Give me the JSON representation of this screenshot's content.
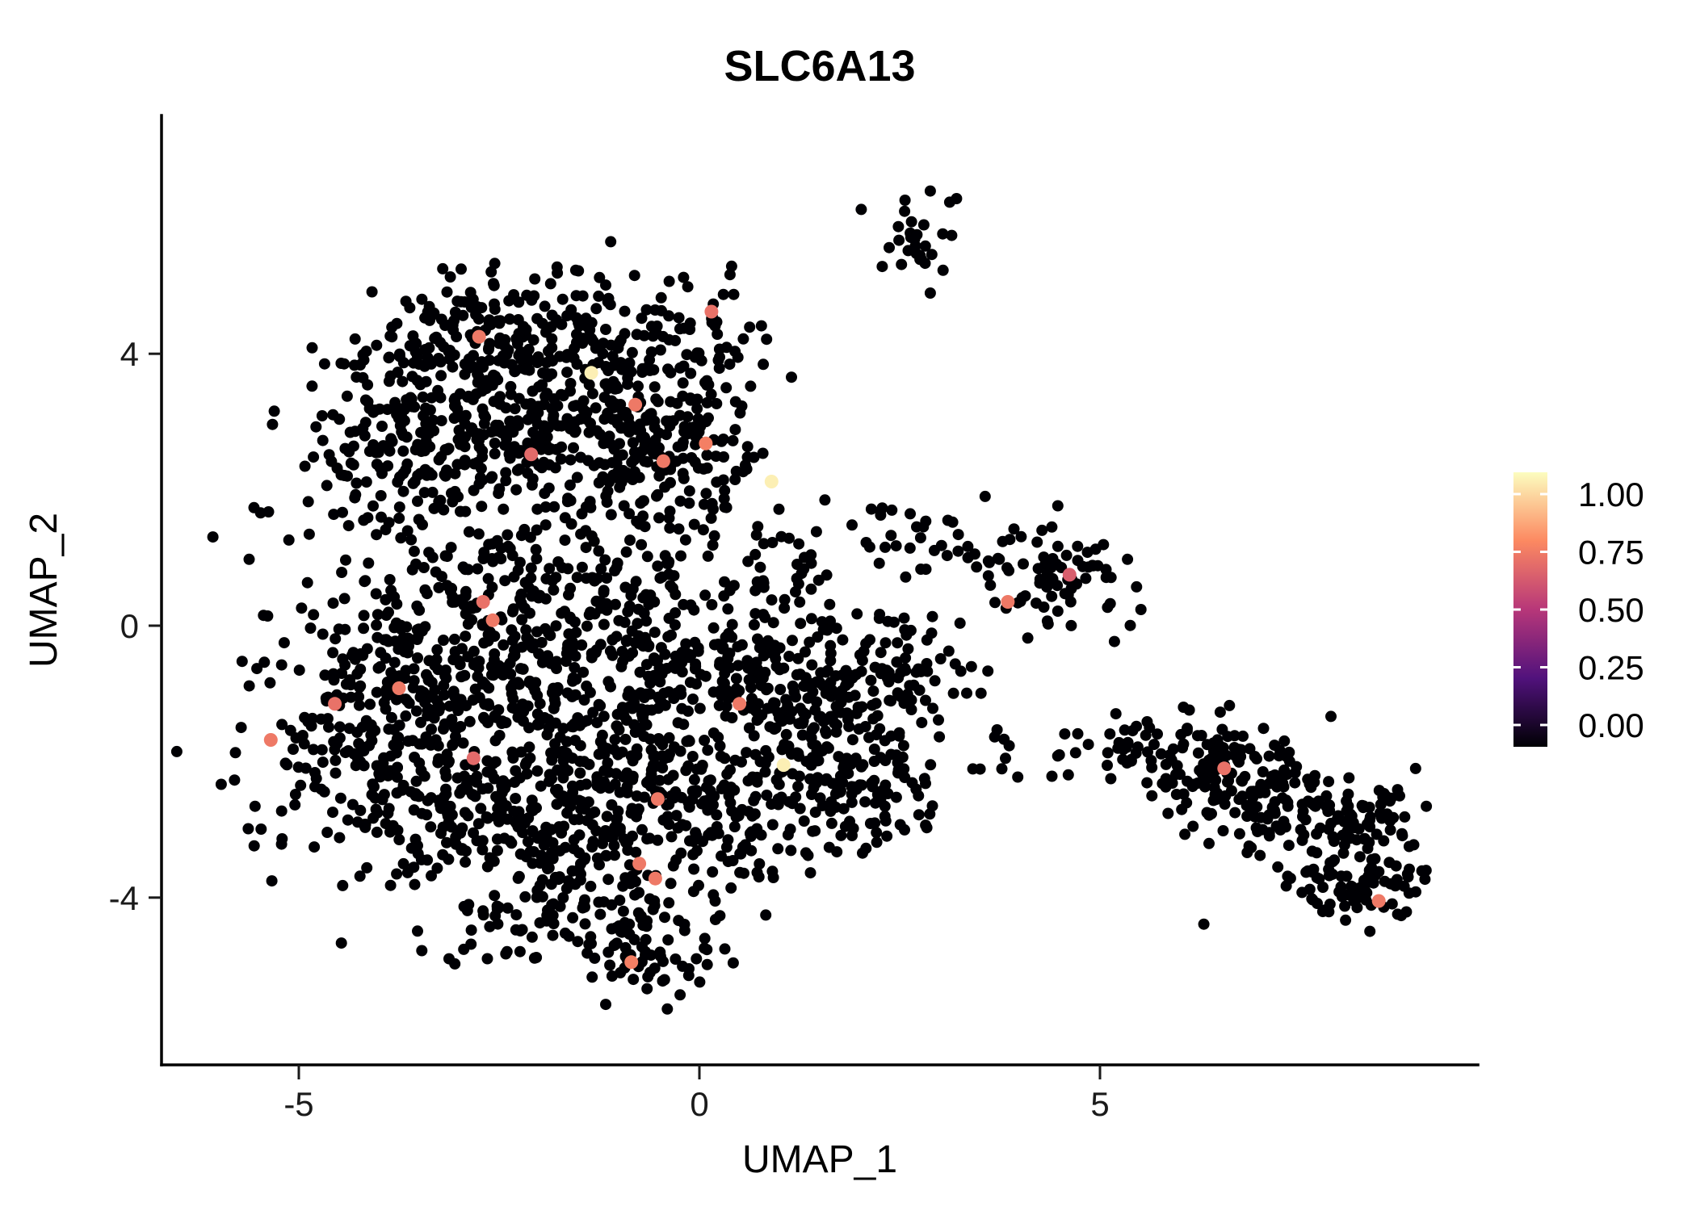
{
  "chart_data": {
    "type": "scatter",
    "title": "SLC6A13",
    "xlabel": "UMAP_1",
    "ylabel": "UMAP_2",
    "xlim": [
      -6.7,
      9.7
    ],
    "ylim": [
      -6.5,
      7.5
    ],
    "grid": false,
    "legend_position": "right",
    "x_ticks": [
      -5,
      0,
      5
    ],
    "x_tick_labels": [
      "-5",
      "0",
      "5"
    ],
    "y_ticks": [
      4,
      0,
      -4
    ],
    "y_tick_labels": [
      "4",
      "0",
      "-4"
    ],
    "point_base_value": 0,
    "colormap": {
      "name": "magma",
      "stops": [
        [
          0,
          "#000004"
        ],
        [
          0.25,
          "#51127C"
        ],
        [
          0.5,
          "#B73779"
        ],
        [
          0.75,
          "#FC8961"
        ],
        [
          1,
          "#FCFDBF"
        ]
      ]
    },
    "legend": {
      "labels": [
        "1.00",
        "0.75",
        "0.50",
        "0.25",
        "0.00"
      ],
      "values": [
        1,
        0.75,
        0.5,
        0.25,
        0
      ]
    },
    "clusters": [
      {
        "cx": -2.3,
        "cy": 4.35,
        "sx": 1.05,
        "sy": 0.45,
        "n": 210
      },
      {
        "cx": -3.6,
        "cy": 3.0,
        "sx": 0.8,
        "sy": 0.55,
        "n": 150
      },
      {
        "cx": -1.6,
        "cy": 3.3,
        "sx": 0.9,
        "sy": 0.55,
        "n": 180
      },
      {
        "cx": -2.6,
        "cy": 2.4,
        "sx": 1.0,
        "sy": 0.45,
        "n": 120
      },
      {
        "cx": -0.3,
        "cy": 2.5,
        "sx": 0.55,
        "sy": 0.75,
        "n": 150
      },
      {
        "cx": 0.15,
        "cy": 4.2,
        "sx": 0.35,
        "sy": 0.6,
        "n": 35
      },
      {
        "cx": -3.2,
        "cy": 1.4,
        "sx": 1.2,
        "sy": 0.45,
        "n": 60
      },
      {
        "cx": -4.0,
        "cy": -1.6,
        "sx": 0.85,
        "sy": 0.9,
        "n": 220
      },
      {
        "cx": -2.6,
        "cy": -2.8,
        "sx": 0.95,
        "sy": 0.85,
        "n": 240
      },
      {
        "cx": -3.1,
        "cy": -0.4,
        "sx": 0.85,
        "sy": 0.65,
        "n": 170
      },
      {
        "cx": -1.6,
        "cy": -1.3,
        "sx": 0.8,
        "sy": 0.8,
        "n": 170
      },
      {
        "cx": -1.3,
        "cy": -4.0,
        "sx": 0.75,
        "sy": 0.55,
        "n": 130
      },
      {
        "cx": -0.7,
        "cy": -4.8,
        "sx": 0.45,
        "sy": 0.35,
        "n": 50
      },
      {
        "cx": -1.9,
        "cy": 0.4,
        "sx": 0.75,
        "sy": 0.5,
        "n": 110
      },
      {
        "cx": -0.6,
        "cy": -0.1,
        "sx": 0.5,
        "sy": 0.8,
        "n": 90
      },
      {
        "cx": -0.6,
        "cy": -2.4,
        "sx": 0.55,
        "sy": 0.7,
        "n": 110
      },
      {
        "cx": 0.6,
        "cy": -0.6,
        "sx": 0.55,
        "sy": 0.6,
        "n": 110
      },
      {
        "cx": 1.3,
        "cy": -1.7,
        "sx": 0.75,
        "sy": 0.8,
        "n": 200
      },
      {
        "cx": 2.1,
        "cy": -2.5,
        "sx": 0.5,
        "sy": 0.5,
        "n": 70
      },
      {
        "cx": 1.9,
        "cy": -0.9,
        "sx": 0.5,
        "sy": 0.5,
        "n": 60
      },
      {
        "cx": 0.4,
        "cy": -3.0,
        "sx": 0.5,
        "sy": 0.4,
        "n": 50
      },
      {
        "cx": 2.9,
        "cy": -0.6,
        "sx": 0.5,
        "sy": 0.45,
        "n": 30
      },
      {
        "cx": 3.6,
        "cy": -1.4,
        "sx": 0.5,
        "sy": 0.4,
        "n": 12
      },
      {
        "cx": 4.6,
        "cy": -1.9,
        "sx": 0.35,
        "sy": 0.25,
        "n": 10
      },
      {
        "cx": 2.75,
        "cy": 5.75,
        "sx": 0.3,
        "sy": 0.33,
        "n": 30
      },
      {
        "cx": 4.4,
        "cy": 0.75,
        "sx": 0.5,
        "sy": 0.45,
        "n": 75
      },
      {
        "cx": 3.4,
        "cy": 1.05,
        "sx": 0.45,
        "sy": 0.35,
        "n": 18
      },
      {
        "cx": 2.2,
        "cy": 1.3,
        "sx": 0.35,
        "sy": 0.3,
        "n": 15
      },
      {
        "cx": 1.2,
        "cy": 0.8,
        "sx": 0.45,
        "sy": 0.45,
        "n": 30
      },
      {
        "cx": 6.2,
        "cy": -1.95,
        "sx": 0.45,
        "sy": 0.3,
        "n": 80
      },
      {
        "cx": 7.0,
        "cy": -2.4,
        "sx": 0.55,
        "sy": 0.4,
        "n": 100
      },
      {
        "cx": 7.8,
        "cy": -3.1,
        "sx": 0.5,
        "sy": 0.4,
        "n": 80
      },
      {
        "cx": 8.3,
        "cy": -3.9,
        "sx": 0.4,
        "sy": 0.28,
        "n": 60
      },
      {
        "cx": 5.45,
        "cy": -1.85,
        "sx": 0.25,
        "sy": 0.18,
        "n": 20
      },
      {
        "cx": 8.6,
        "cy": -2.9,
        "sx": 0.3,
        "sy": 0.35,
        "n": 30
      }
    ],
    "highlighted_points": [
      {
        "x": -2.75,
        "y": 4.25,
        "value": 0.7
      },
      {
        "x": 0.15,
        "y": 4.62,
        "value": 0.68
      },
      {
        "x": -1.35,
        "y": 3.72,
        "value": 0.97
      },
      {
        "x": -0.8,
        "y": 3.25,
        "value": 0.7
      },
      {
        "x": -2.1,
        "y": 2.52,
        "value": 0.66
      },
      {
        "x": -0.45,
        "y": 2.42,
        "value": 0.7
      },
      {
        "x": 0.08,
        "y": 2.68,
        "value": 0.72
      },
      {
        "x": 0.9,
        "y": 2.12,
        "value": 0.97
      },
      {
        "x": -2.7,
        "y": 0.35,
        "value": 0.68
      },
      {
        "x": -2.58,
        "y": 0.08,
        "value": 0.7
      },
      {
        "x": -3.75,
        "y": -0.92,
        "value": 0.7
      },
      {
        "x": -4.55,
        "y": -1.15,
        "value": 0.68
      },
      {
        "x": -5.35,
        "y": -1.68,
        "value": 0.7
      },
      {
        "x": -2.82,
        "y": -1.95,
        "value": 0.66
      },
      {
        "x": 0.5,
        "y": -1.15,
        "value": 0.7
      },
      {
        "x": 1.05,
        "y": -2.05,
        "value": 0.97
      },
      {
        "x": -0.52,
        "y": -2.55,
        "value": 0.7
      },
      {
        "x": -0.75,
        "y": -3.5,
        "value": 0.7
      },
      {
        "x": -0.55,
        "y": -3.72,
        "value": 0.7
      },
      {
        "x": -0.85,
        "y": -4.95,
        "value": 0.72
      },
      {
        "x": 3.85,
        "y": 0.35,
        "value": 0.7
      },
      {
        "x": 4.62,
        "y": 0.75,
        "value": 0.62
      },
      {
        "x": 6.55,
        "y": -2.1,
        "value": 0.68
      },
      {
        "x": 8.48,
        "y": -4.05,
        "value": 0.7
      }
    ]
  }
}
